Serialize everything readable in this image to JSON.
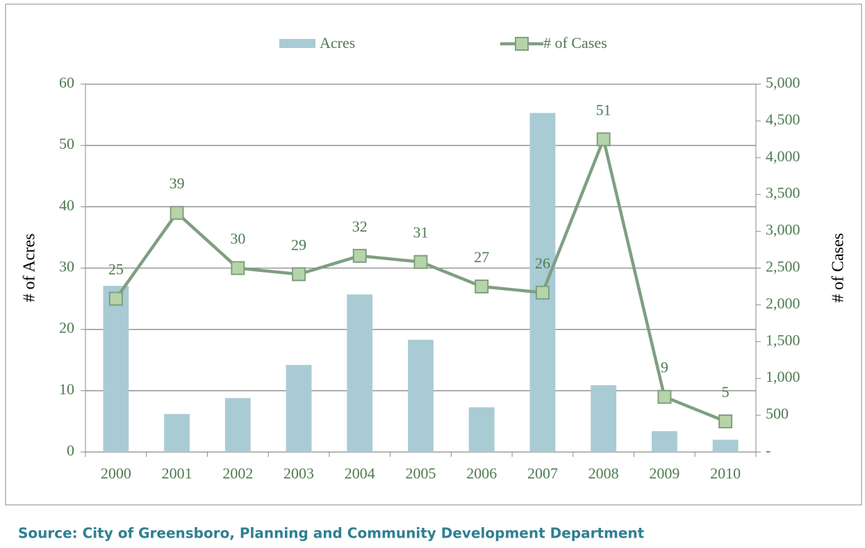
{
  "chart_data": {
    "type": "bar",
    "categories": [
      "2000",
      "2001",
      "2002",
      "2003",
      "2004",
      "2005",
      "2006",
      "2007",
      "2008",
      "2009",
      "2010"
    ],
    "series": [
      {
        "name": "Acres",
        "type": "bar",
        "color": "#a9cbd4",
        "values": [
          27.1,
          6.2,
          8.8,
          14.2,
          25.7,
          18.3,
          7.3,
          55.3,
          10.9,
          3.4,
          2.0
        ]
      },
      {
        "name": "# of Cases",
        "type": "line",
        "color": "#7f9f80",
        "values": [
          25,
          39,
          30,
          29,
          32,
          31,
          27,
          26,
          51,
          9,
          5
        ]
      }
    ],
    "ylabel": "# of Acres",
    "y2label": "# of Cases",
    "ylim": [
      0,
      60
    ],
    "yticks": [
      0,
      10,
      20,
      30,
      40,
      50,
      60
    ],
    "y2lim": [
      0,
      5000
    ],
    "y2ticks": [
      {
        "value": 0,
        "label": "-"
      },
      500,
      {
        "value": 1000,
        "label": "1,000"
      },
      {
        "value": 1500,
        "label": "1,500"
      },
      {
        "value": 2000,
        "label": "2,000"
      },
      {
        "value": 2500,
        "label": "2,500"
      },
      {
        "value": 3000,
        "label": "3,000"
      },
      {
        "value": 3500,
        "label": "3,500"
      },
      {
        "value": 4000,
        "label": "4,000"
      },
      {
        "value": 4500,
        "label": "4,500"
      },
      {
        "value": 5000,
        "label": "5,000"
      }
    ],
    "grid": true,
    "legend": "top",
    "source": "Source: City of Greensboro, Planning and Community Development Department"
  }
}
